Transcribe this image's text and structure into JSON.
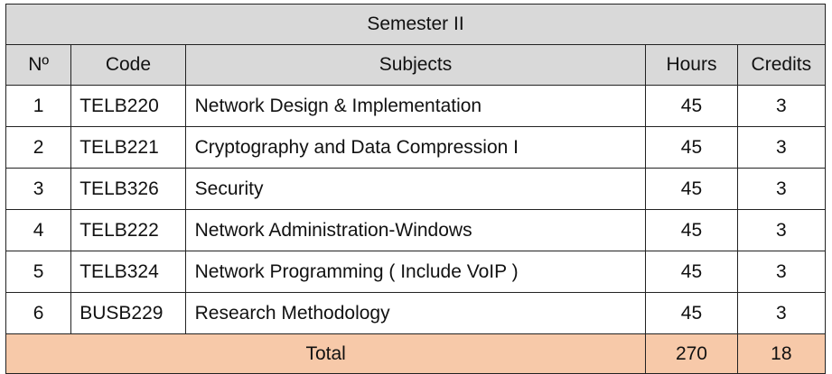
{
  "table": {
    "title": "Semester II",
    "headers": {
      "no": "Nº",
      "code": "Code",
      "subjects": "Subjects",
      "hours": "Hours",
      "credits": "Credits"
    },
    "rows": [
      {
        "no": "1",
        "code": "TELB220",
        "subject": "Network Design & Implementation",
        "hours": "45",
        "credits": "3"
      },
      {
        "no": "2",
        "code": "TELB221",
        "subject": "Cryptography and Data Compression I",
        "hours": "45",
        "credits": "3"
      },
      {
        "no": "3",
        "code": "TELB326",
        "subject": "Security",
        "hours": "45",
        "credits": "3"
      },
      {
        "no": "4",
        "code": "TELB222",
        "subject": "Network Administration-Windows",
        "hours": "45",
        "credits": "3"
      },
      {
        "no": "5",
        "code": "TELB324",
        "subject": "Network Programming ( Include VoIP )",
        "hours": "45",
        "credits": "3"
      },
      {
        "no": "6",
        "code": "BUSB229",
        "subject": "Research Methodology",
        "hours": "45",
        "credits": "3"
      }
    ],
    "total": {
      "label": "Total",
      "hours": "270",
      "credits": "18"
    },
    "colors": {
      "header_bg": "#d9d9d9",
      "total_bg": "#f7c9a9",
      "border": "#222222"
    }
  }
}
